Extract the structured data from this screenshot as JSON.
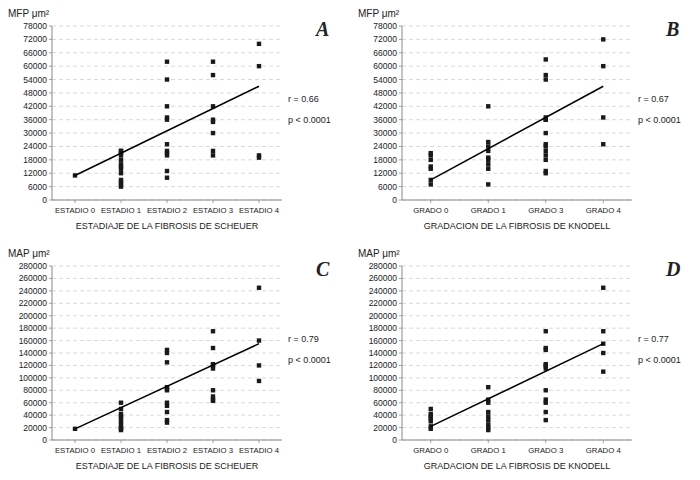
{
  "chart_data": [
    {
      "type": "scatter",
      "title": "A",
      "y_label": "MFP μm²",
      "x_label": "ESTADIAJE DE LA FIBROSIS DE SCHEUER",
      "xlim": [
        -0.5,
        4.5
      ],
      "xticks": [
        {
          "value": 0,
          "label": "ESTADIO 0"
        },
        {
          "value": 1,
          "label": "ESTADIO 1"
        },
        {
          "value": 2,
          "label": "ESTADIO 2"
        },
        {
          "value": 3,
          "label": "ESTADIO 3"
        },
        {
          "value": 4,
          "label": "ESTADIO 4"
        }
      ],
      "ylim": [
        0,
        78000
      ],
      "yticks": [
        0,
        6000,
        12000,
        18000,
        24000,
        30000,
        36000,
        42000,
        48000,
        54000,
        60000,
        66000,
        72000,
        78000
      ],
      "grid": true,
      "annotations": [
        "r = 0.66",
        "p < 0.0001"
      ],
      "series": [
        {
          "type": "scatter",
          "marker": "square",
          "color": "#1a1a1a",
          "x": [
            0,
            1,
            1,
            1,
            1,
            1,
            1,
            1,
            1,
            1,
            1,
            1,
            1,
            1,
            2,
            2,
            2,
            2,
            2,
            2,
            2,
            2,
            2,
            2,
            2,
            3,
            3,
            3,
            3,
            3,
            3,
            3,
            3,
            4,
            4,
            4,
            4
          ],
          "values": [
            11000,
            22000,
            21000,
            20000,
            18000,
            16000,
            14000,
            12000,
            9000,
            8000,
            7000,
            6000,
            22000,
            15000,
            36000,
            22000,
            21000,
            20000,
            25000,
            13000,
            10000,
            62000,
            54000,
            37000,
            42000,
            42000,
            36000,
            35000,
            30000,
            22000,
            20000,
            62000,
            56000,
            70000,
            60000,
            20000,
            19000
          ]
        },
        {
          "type": "line",
          "color": "#000000",
          "x": [
            0,
            4
          ],
          "values": [
            11000,
            51000
          ]
        }
      ]
    },
    {
      "type": "scatter",
      "title": "B",
      "y_label": "MFP μm²",
      "x_label": "GRADACION DE LA FIBROSIS DE KNODELL",
      "xlim": [
        -0.5,
        3.5
      ],
      "xticks": [
        {
          "value": 0,
          "label": "GRADO 0"
        },
        {
          "value": 1,
          "label": "GRADO 1"
        },
        {
          "value": 2,
          "label": "GRADO 3"
        },
        {
          "value": 3,
          "label": "GRADO 4"
        }
      ],
      "ylim": [
        0,
        78000
      ],
      "yticks": [
        0,
        6000,
        12000,
        18000,
        24000,
        30000,
        36000,
        42000,
        48000,
        54000,
        60000,
        66000,
        72000,
        78000
      ],
      "grid": true,
      "annotations": [
        "r = 0.67",
        "p < 0.0001"
      ],
      "series": [
        {
          "type": "scatter",
          "marker": "square",
          "color": "#1a1a1a",
          "x": [
            0,
            0,
            0,
            0,
            0,
            0,
            0,
            1,
            1,
            1,
            1,
            1,
            1,
            1,
            1,
            1,
            2,
            2,
            2,
            2,
            2,
            2,
            2,
            2,
            2,
            2,
            2,
            2,
            2,
            2,
            3,
            3,
            3,
            3
          ],
          "values": [
            21000,
            20000,
            18000,
            15000,
            14000,
            9000,
            7000,
            42000,
            26000,
            24000,
            22000,
            19000,
            18000,
            16000,
            14000,
            7000,
            63000,
            56000,
            54000,
            37000,
            36000,
            36000,
            30000,
            25000,
            24000,
            22000,
            20000,
            18000,
            13000,
            12000,
            72000,
            60000,
            37000,
            25000
          ]
        },
        {
          "type": "line",
          "color": "#000000",
          "x": [
            0,
            3
          ],
          "values": [
            9000,
            51000
          ]
        }
      ]
    },
    {
      "type": "scatter",
      "title": "C",
      "y_label": "MAP μm²",
      "x_label": "ESTADIAJE DE LA FIBROSIS DE SCHEUER",
      "xlim": [
        -0.5,
        4.5
      ],
      "xticks": [
        {
          "value": 0,
          "label": "ESTADIO 0"
        },
        {
          "value": 1,
          "label": "ESTADIO 1"
        },
        {
          "value": 2,
          "label": "ESTADIO 2"
        },
        {
          "value": 3,
          "label": "ESTADIO 3"
        },
        {
          "value": 4,
          "label": "ESTADIO 4"
        }
      ],
      "ylim": [
        0,
        280000
      ],
      "yticks": [
        0,
        20000,
        40000,
        60000,
        80000,
        100000,
        120000,
        140000,
        160000,
        180000,
        200000,
        220000,
        240000,
        260000,
        280000
      ],
      "grid": true,
      "annotations": [
        "r = 0.79",
        "p < 0.0001"
      ],
      "series": [
        {
          "type": "scatter",
          "marker": "square",
          "color": "#1a1a1a",
          "x": [
            0,
            1,
            1,
            1,
            1,
            1,
            1,
            1,
            1,
            1,
            1,
            2,
            2,
            2,
            2,
            2,
            2,
            2,
            2,
            2,
            2,
            2,
            3,
            3,
            3,
            3,
            3,
            3,
            3,
            3,
            3,
            4,
            4,
            4,
            4
          ],
          "values": [
            18000,
            60000,
            50000,
            42000,
            38000,
            35000,
            30000,
            25000,
            20000,
            18000,
            16000,
            145000,
            140000,
            125000,
            85000,
            82000,
            80000,
            60000,
            55000,
            45000,
            32000,
            28000,
            175000,
            148000,
            122000,
            120000,
            115000,
            80000,
            70000,
            65000,
            63000,
            245000,
            160000,
            120000,
            95000
          ]
        },
        {
          "type": "line",
          "color": "#000000",
          "x": [
            0,
            4
          ],
          "values": [
            18000,
            155000
          ]
        }
      ]
    },
    {
      "type": "scatter",
      "title": "D",
      "y_label": "MAP μm²",
      "x_label": "GRADACION DE LA FIBROSIS DE KNODELL",
      "xlim": [
        -0.5,
        3.5
      ],
      "xticks": [
        {
          "value": 0,
          "label": "GRADO 0"
        },
        {
          "value": 1,
          "label": "GRADO 1"
        },
        {
          "value": 2,
          "label": "GRADO 3"
        },
        {
          "value": 3,
          "label": "GRADO 4"
        }
      ],
      "ylim": [
        0,
        280000
      ],
      "yticks": [
        0,
        20000,
        40000,
        60000,
        80000,
        100000,
        120000,
        140000,
        160000,
        180000,
        200000,
        220000,
        240000,
        260000,
        280000
      ],
      "grid": true,
      "annotations": [
        "r = 0.77",
        "p < 0.0001"
      ],
      "series": [
        {
          "type": "scatter",
          "marker": "square",
          "color": "#1a1a1a",
          "x": [
            0,
            0,
            0,
            0,
            0,
            0,
            0,
            1,
            1,
            1,
            1,
            1,
            1,
            1,
            1,
            1,
            2,
            2,
            2,
            2,
            2,
            2,
            2,
            2,
            2,
            2,
            2,
            3,
            3,
            3,
            3,
            3
          ],
          "values": [
            50000,
            42000,
            38000,
            35000,
            30000,
            22000,
            18000,
            85000,
            65000,
            60000,
            45000,
            38000,
            32000,
            25000,
            20000,
            16000,
            175000,
            148000,
            145000,
            122000,
            120000,
            115000,
            80000,
            65000,
            60000,
            45000,
            32000,
            245000,
            175000,
            155000,
            140000,
            110000
          ]
        },
        {
          "type": "line",
          "color": "#000000",
          "x": [
            0,
            3
          ],
          "values": [
            22000,
            155000
          ]
        }
      ]
    }
  ]
}
